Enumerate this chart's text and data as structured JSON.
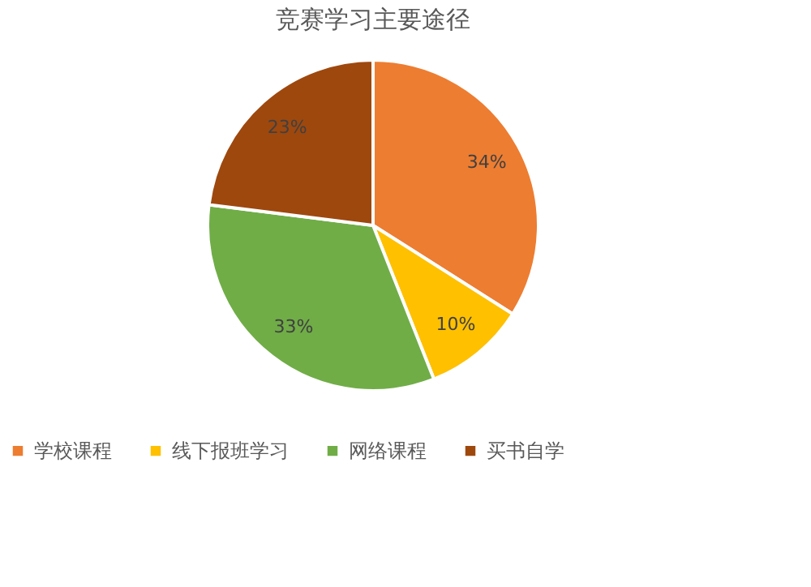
{
  "chart_data": {
    "type": "pie",
    "title": "竞赛学习主要途径",
    "categories": [
      "学校课程",
      "线下报班学习",
      "网络课程",
      "买书自学"
    ],
    "values": [
      34,
      10,
      33,
      23
    ],
    "colors": [
      "#ed7d31",
      "#ffc000",
      "#70ad47",
      "#9e480e"
    ],
    "value_labels": [
      "34%",
      "10%",
      "33%",
      "23%"
    ],
    "legend": "bottom"
  }
}
